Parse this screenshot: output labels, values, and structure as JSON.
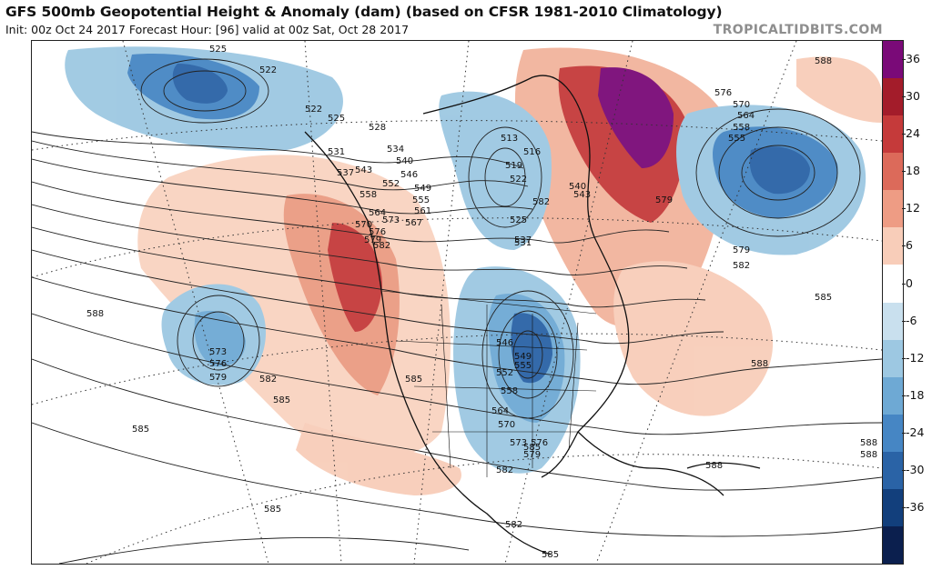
{
  "header": {
    "title": "GFS 500mb Geopotential Height & Anomaly (dam) (based on CFSR 1981-2010 Climatology)",
    "subtitle": "Init: 00z Oct 24 2017   Forecast Hour: [96]   valid at 00z Sat, Oct 28 2017",
    "brand": "TROPICALTIDBITS.COM"
  },
  "colorbar": {
    "ticks": [
      "36",
      "30",
      "24",
      "18",
      "12",
      "6",
      "0",
      "-6",
      "-12",
      "-18",
      "-24",
      "-30",
      "-36"
    ],
    "colors": [
      "#7a0a78",
      "#a31c2a",
      "#c53a3a",
      "#dc6a5a",
      "#ee9c84",
      "#f8cdb9",
      "#ffffff",
      "#c9e0ee",
      "#9dc8e2",
      "#6ea9d4",
      "#4686c4",
      "#2a63a6",
      "#123f7c",
      "#0b1f4e"
    ]
  },
  "contour_labels": [
    "525",
    "522",
    "522",
    "525",
    "528",
    "531",
    "534",
    "537",
    "540",
    "543",
    "546",
    "549",
    "552",
    "555",
    "558",
    "561",
    "564",
    "567",
    "570",
    "573",
    "576",
    "579",
    "582",
    "585",
    "588",
    "513",
    "516",
    "519",
    "522",
    "525",
    "531",
    "537",
    "540",
    "543",
    "546",
    "549",
    "552",
    "555",
    "558",
    "564",
    "570",
    "573",
    "576",
    "579",
    "582",
    "582",
    "585",
    "585",
    "585",
    "585",
    "585",
    "588",
    "588",
    "588",
    "588",
    "576",
    "570",
    "564",
    "558",
    "555",
    "579",
    "582",
    "579",
    "582",
    "573",
    "576",
    "579",
    "582",
    "585",
    "588"
  ]
}
